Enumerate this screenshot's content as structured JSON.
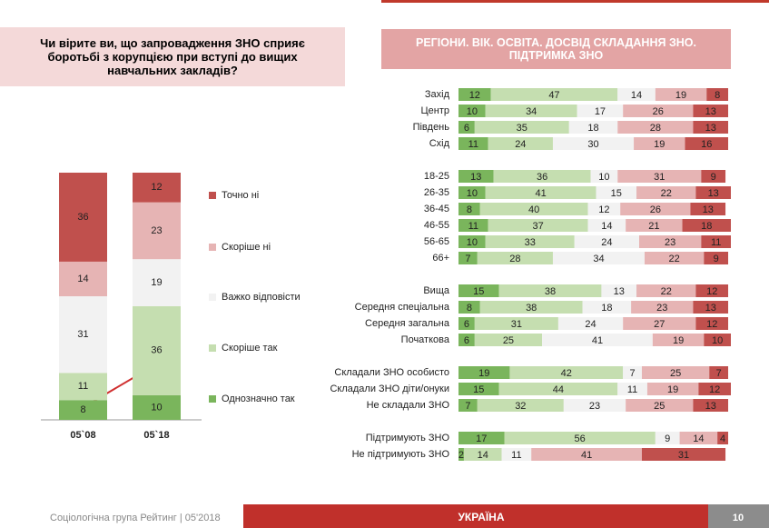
{
  "chart_data": [
    {
      "type": "bar",
      "stacked": true,
      "title": "Чи вірите ви, що запровадження ЗНО сприяє боротьбі з корупцією при вступі до вищих навчальних закладів?",
      "categories": [
        "05`08",
        "05`18"
      ],
      "series": [
        {
          "name": "Однозначно так",
          "color": "#7ab55c",
          "values": [
            8,
            10
          ]
        },
        {
          "name": "Скоріше  так",
          "color": "#c5deb0",
          "values": [
            11,
            36
          ]
        },
        {
          "name": "Важко відповісти",
          "color": "#f2f2f2",
          "values": [
            31,
            19
          ]
        },
        {
          "name": "Скоріше  ні",
          "color": "#e6b4b4",
          "values": [
            14,
            23
          ]
        },
        {
          "name": "Точно ні",
          "color": "#c0504d",
          "values": [
            36,
            12
          ]
        }
      ]
    },
    {
      "type": "bar",
      "orientation": "horizontal",
      "stacked": true,
      "title": "РЕГІОНИ. ВІК. ОСВІТА. ДОСВІД  СКЛАДАННЯ ЗНО. ПІДТРИМКА ЗНО",
      "categories": [
        "Захід",
        "Центр",
        "Південь",
        "Схід",
        null,
        "18-25",
        "26-35",
        "36-45",
        "46-55",
        "56-65",
        "66+",
        null,
        "Вища",
        "Середня спеціальна",
        "Середня загальна",
        "Початкова",
        null,
        "Складали ЗНО особисто",
        "Складали ЗНО діти/онуки",
        "Не складали ЗНО",
        null,
        "Підтримують ЗНО",
        "Не підтримують ЗНО"
      ],
      "series": [
        {
          "color": "#7ab55c",
          "values": [
            12,
            10,
            6,
            11,
            null,
            13,
            10,
            8,
            11,
            10,
            7,
            null,
            15,
            8,
            6,
            6,
            null,
            19,
            15,
            7,
            null,
            17,
            2
          ]
        },
        {
          "color": "#c5deb0",
          "values": [
            47,
            34,
            35,
            24,
            null,
            36,
            41,
            40,
            37,
            33,
            28,
            null,
            38,
            38,
            31,
            25,
            null,
            42,
            44,
            32,
            null,
            56,
            14
          ]
        },
        {
          "color": "#f2f2f2",
          "values": [
            14,
            17,
            18,
            30,
            null,
            10,
            15,
            12,
            14,
            24,
            34,
            null,
            13,
            18,
            24,
            41,
            null,
            7,
            11,
            23,
            null,
            9,
            11
          ]
        },
        {
          "color": "#e6b4b4",
          "values": [
            19,
            26,
            28,
            19,
            null,
            31,
            22,
            26,
            21,
            23,
            22,
            null,
            22,
            23,
            27,
            19,
            null,
            25,
            19,
            25,
            null,
            14,
            41
          ]
        },
        {
          "color": "#c0504d",
          "values": [
            8,
            13,
            13,
            16,
            null,
            9,
            13,
            13,
            18,
            11,
            9,
            null,
            12,
            13,
            12,
            10,
            null,
            7,
            12,
            13,
            null,
            4,
            31
          ]
        }
      ]
    }
  ],
  "footer": {
    "source": "Соціологічна група Рейтинг  |  05'2018",
    "region": "УКРАЇНА",
    "page": "10"
  }
}
